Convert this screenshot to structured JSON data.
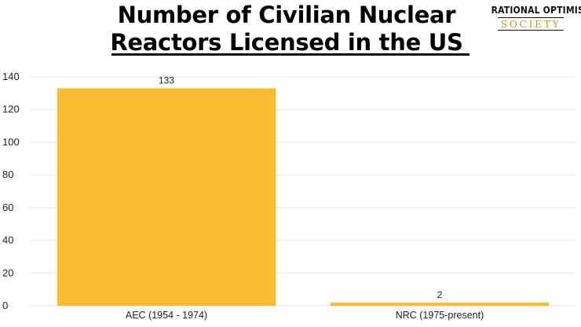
{
  "title_line1": "Number of Civilian Nuclear",
  "title_line2": "Reactors Licensed in the US",
  "logo": {
    "line1": "RATIONAL OPTIMIST",
    "line2": "SOCIETY"
  },
  "colors": {
    "bar": "#fbbc33",
    "grid": "#e6e6e6",
    "text": "#222222"
  },
  "chart_data": {
    "type": "bar",
    "title": "Number of Civilian Nuclear Reactors Licensed in the US",
    "categories": [
      "AEC (1954 - 1974)",
      "NRC (1975-present)"
    ],
    "values": [
      133,
      2
    ],
    "data_labels": [
      "133",
      "2"
    ],
    "xlabel": "",
    "ylabel": "",
    "ylim": [
      0,
      140
    ],
    "yticks": [
      0,
      20,
      40,
      60,
      80,
      100,
      120,
      140
    ],
    "grid": true,
    "legend": "none"
  }
}
